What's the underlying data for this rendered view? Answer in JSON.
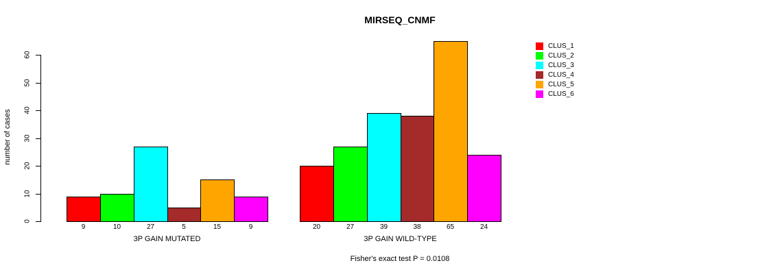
{
  "chart_data": {
    "type": "bar",
    "title": "MIRSEQ_CNMF",
    "ylabel": "number of cases",
    "footnote": "Fisher's exact test P = 0.0108",
    "ylim": [
      0,
      65
    ],
    "yticks": [
      0,
      10,
      20,
      30,
      40,
      50,
      60
    ],
    "grid": false,
    "legend_position": "right",
    "clusters": [
      {
        "name": "CLUS_1",
        "color": "#FF0000"
      },
      {
        "name": "CLUS_2",
        "color": "#00FF00"
      },
      {
        "name": "CLUS_3",
        "color": "#00FFFF"
      },
      {
        "name": "CLUS_4",
        "color": "#A52A2A"
      },
      {
        "name": "CLUS_5",
        "color": "#FFA500"
      },
      {
        "name": "CLUS_6",
        "color": "#FF00FF"
      }
    ],
    "groups": [
      {
        "label": "3P GAIN MUTATED",
        "values": [
          9,
          10,
          27,
          5,
          15,
          9
        ]
      },
      {
        "label": "3P GAIN WILD-TYPE",
        "values": [
          20,
          27,
          39,
          38,
          65,
          24
        ]
      }
    ]
  }
}
